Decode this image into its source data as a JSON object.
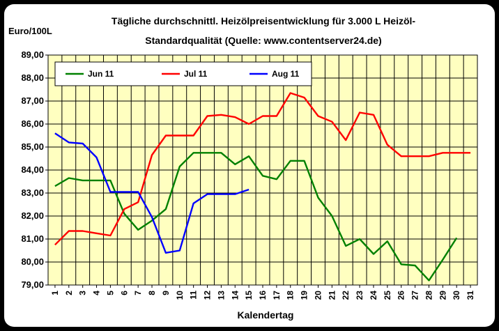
{
  "chart_data": {
    "type": "line",
    "title_line1": "Tägliche durchschnittl. Heizölpreisentwicklung für 3.000 L Heizöl-",
    "title_line2": "Standardqualität (Quelle: www.contentserver24.de)",
    "ylabel": "Euro/100L",
    "xlabel": "Kalendertag",
    "ylim": [
      79,
      89
    ],
    "yticks": [
      "79,00",
      "80,00",
      "81,00",
      "82,00",
      "83,00",
      "84,00",
      "85,00",
      "86,00",
      "87,00",
      "88,00",
      "89,00"
    ],
    "x": [
      1,
      2,
      3,
      4,
      5,
      6,
      7,
      8,
      9,
      10,
      11,
      12,
      13,
      14,
      15,
      16,
      17,
      18,
      19,
      20,
      21,
      22,
      23,
      24,
      25,
      26,
      27,
      28,
      29,
      30,
      31
    ],
    "grid": true,
    "legend_position": "top-left",
    "plot_background": "#ffffc0",
    "series": [
      {
        "name": "Jun 11",
        "color": "#008000",
        "values": [
          83.3,
          83.65,
          83.55,
          83.55,
          83.55,
          82.1,
          81.4,
          81.8,
          82.3,
          84.15,
          84.75,
          84.75,
          84.75,
          84.25,
          84.6,
          83.75,
          83.6,
          84.4,
          84.4,
          82.8,
          82.0,
          80.7,
          81.0,
          80.35,
          80.9,
          79.9,
          79.85,
          79.2,
          80.1,
          81.05,
          null
        ]
      },
      {
        "name": "Jul 11",
        "color": "#ff0000",
        "values": [
          80.75,
          81.35,
          81.35,
          81.25,
          81.15,
          82.3,
          82.6,
          84.65,
          85.5,
          85.5,
          85.5,
          86.35,
          86.4,
          86.3,
          86.0,
          86.35,
          86.35,
          87.35,
          87.15,
          86.35,
          86.1,
          85.3,
          86.5,
          86.4,
          85.1,
          84.6,
          84.6,
          84.6,
          84.75,
          84.75,
          84.75
        ]
      },
      {
        "name": "Aug 11",
        "color": "#0000ff",
        "values": [
          85.6,
          85.2,
          85.15,
          84.55,
          83.05,
          83.05,
          83.05,
          81.95,
          80.4,
          80.5,
          82.55,
          82.95,
          82.95,
          82.95,
          83.15,
          null,
          null,
          null,
          null,
          null,
          null,
          null,
          null,
          null,
          null,
          null,
          null,
          null,
          null,
          null,
          null
        ]
      }
    ]
  }
}
